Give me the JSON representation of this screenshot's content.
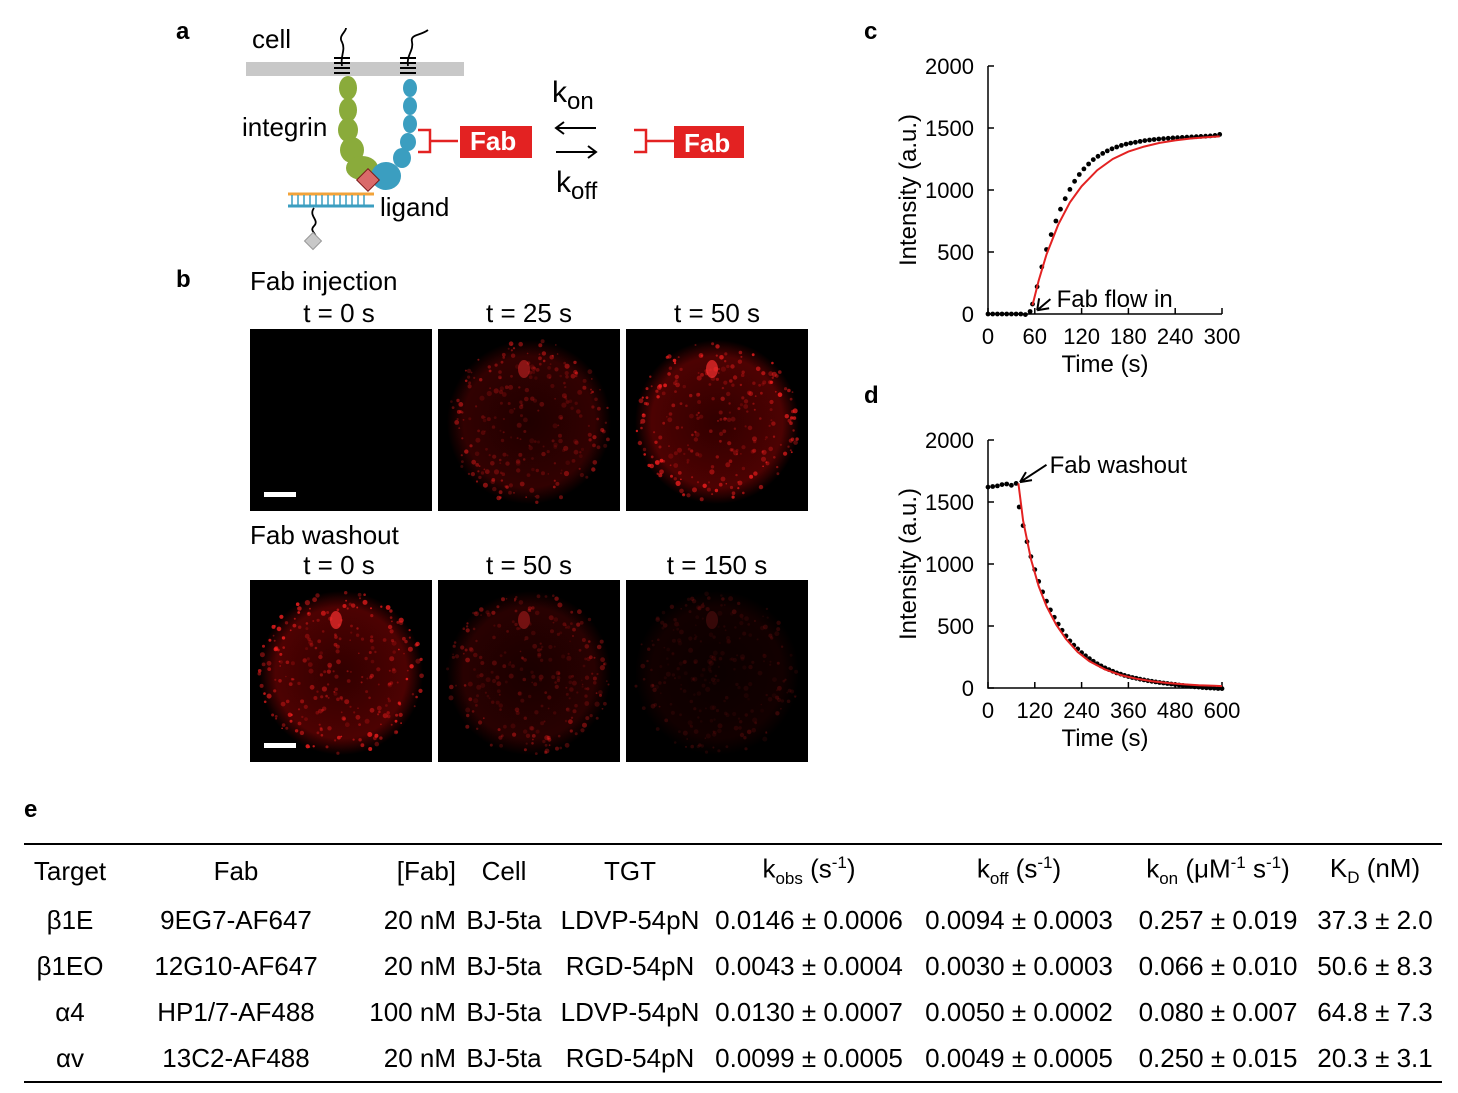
{
  "panels": {
    "a": "a",
    "b": "b",
    "c": "c",
    "d": "d",
    "e": "e"
  },
  "schematic": {
    "cell": "cell",
    "integrin": "integrin",
    "ligand": "ligand",
    "fab_bound": "Fab",
    "fab_free": "Fab",
    "k": "k",
    "on": "on",
    "off": "off",
    "colors": {
      "alpha_subunit": "#8aab3b",
      "beta_subunit": "#3b9ec0",
      "fab": "#e32222",
      "membrane": "#c8c8c8"
    }
  },
  "micrographs": {
    "injection_title": "Fab injection",
    "washout_title": "Fab washout",
    "injection_times": [
      "t = 0 s",
      "t = 25 s",
      "t = 50 s"
    ],
    "washout_times": [
      "t = 0 s",
      "t = 50 s",
      "t = 150 s"
    ],
    "injection_brightness": [
      0,
      0.55,
      0.85
    ],
    "washout_brightness": [
      0.85,
      0.45,
      0.2
    ]
  },
  "chart_data": [
    {
      "type": "scatter",
      "panel": "c",
      "xlabel": "Time (s)",
      "ylabel": "Intensity (a.u.)",
      "xlim": [
        0,
        300
      ],
      "ylim": [
        0,
        2000
      ],
      "xticks": [
        "0",
        "60",
        "120",
        "180",
        "240",
        "300"
      ],
      "yticks": [
        "0",
        "500",
        "1000",
        "1500",
        "2000"
      ],
      "annotation": "Fab flow in",
      "series": [
        {
          "points": [
            [
              0,
              0
            ],
            [
              6,
              0
            ],
            [
              12,
              0
            ],
            [
              18,
              0
            ],
            [
              24,
              0
            ],
            [
              30,
              0
            ],
            [
              36,
              0
            ],
            [
              42,
              0
            ],
            [
              48,
              -5
            ],
            [
              54,
              20
            ],
            [
              57,
              80
            ],
            [
              63,
              220
            ],
            [
              69,
              380
            ],
            [
              75,
              520
            ],
            [
              81,
              640
            ],
            [
              87,
              750
            ],
            [
              93,
              845
            ],
            [
              99,
              930
            ],
            [
              105,
              1005
            ],
            [
              111,
              1070
            ],
            [
              117,
              1125
            ],
            [
              123,
              1170
            ],
            [
              129,
              1210
            ],
            [
              135,
              1245
            ],
            [
              141,
              1272
            ],
            [
              147,
              1295
            ],
            [
              153,
              1315
            ],
            [
              159,
              1332
            ],
            [
              165,
              1347
            ],
            [
              171,
              1360
            ],
            [
              177,
              1370
            ],
            [
              183,
              1378
            ],
            [
              189,
              1385
            ],
            [
              195,
              1392
            ],
            [
              201,
              1398
            ],
            [
              207,
              1403
            ],
            [
              213,
              1407
            ],
            [
              219,
              1411
            ],
            [
              225,
              1414
            ],
            [
              231,
              1417
            ],
            [
              237,
              1420
            ],
            [
              243,
              1422
            ],
            [
              249,
              1424
            ],
            [
              255,
              1426
            ],
            [
              261,
              1428
            ],
            [
              267,
              1430
            ],
            [
              273,
              1432
            ],
            [
              279,
              1434
            ],
            [
              285,
              1436
            ],
            [
              291,
              1440
            ],
            [
              297,
              1448
            ]
          ]
        },
        {
          "fit": [
            [
              57,
              70
            ],
            [
              65,
              270
            ],
            [
              75,
              480
            ],
            [
              90,
              720
            ],
            [
              105,
              900
            ],
            [
              120,
              1030
            ],
            [
              140,
              1160
            ],
            [
              160,
              1250
            ],
            [
              180,
              1310
            ],
            [
              200,
              1350
            ],
            [
              220,
              1380
            ],
            [
              240,
              1400
            ],
            [
              260,
              1415
            ],
            [
              280,
              1425
            ],
            [
              297,
              1432
            ]
          ]
        }
      ]
    },
    {
      "type": "scatter",
      "panel": "d",
      "xlabel": "Time (s)",
      "ylabel": "Intensity (a.u.)",
      "xlim": [
        0,
        600
      ],
      "ylim": [
        0,
        2000
      ],
      "xticks": [
        "0",
        "120",
        "240",
        "360",
        "480",
        "600"
      ],
      "yticks": [
        "0",
        "500",
        "1000",
        "1500",
        "2000"
      ],
      "annotation": "Fab washout",
      "series": [
        {
          "points": [
            [
              0,
              1620
            ],
            [
              12,
              1625
            ],
            [
              24,
              1630
            ],
            [
              36,
              1640
            ],
            [
              48,
              1645
            ],
            [
              60,
              1635
            ],
            [
              72,
              1650
            ],
            [
              80,
              1460
            ],
            [
              90,
              1310
            ],
            [
              100,
              1180
            ],
            [
              110,
              1060
            ],
            [
              120,
              955
            ],
            [
              130,
              860
            ],
            [
              140,
              775
            ],
            [
              150,
              700
            ],
            [
              160,
              630
            ],
            [
              170,
              570
            ],
            [
              180,
              515
            ],
            [
              190,
              465
            ],
            [
              200,
              420
            ],
            [
              210,
              380
            ],
            [
              220,
              345
            ],
            [
              230,
              315
            ],
            [
              240,
              285
            ],
            [
              250,
              260
            ],
            [
              260,
              237
            ],
            [
              270,
              215
            ],
            [
              280,
              195
            ],
            [
              290,
              178
            ],
            [
              300,
              162
            ],
            [
              310,
              148
            ],
            [
              320,
              135
            ],
            [
              330,
              122
            ],
            [
              340,
              112
            ],
            [
              350,
              102
            ],
            [
              360,
              93
            ],
            [
              370,
              85
            ],
            [
              380,
              78
            ],
            [
              390,
              71
            ],
            [
              400,
              65
            ],
            [
              410,
              59
            ],
            [
              420,
              54
            ],
            [
              430,
              49
            ],
            [
              440,
              44
            ],
            [
              450,
              40
            ],
            [
              460,
              36
            ],
            [
              470,
              32
            ],
            [
              480,
              28
            ],
            [
              490,
              24
            ],
            [
              500,
              20
            ],
            [
              510,
              16
            ],
            [
              520,
              13
            ],
            [
              530,
              10
            ],
            [
              540,
              7
            ],
            [
              550,
              4
            ],
            [
              560,
              2
            ],
            [
              570,
              0
            ],
            [
              580,
              -2
            ],
            [
              590,
              -4
            ],
            [
              600,
              -5
            ]
          ]
        },
        {
          "fit": [
            [
              78,
              1650
            ],
            [
              90,
              1350
            ],
            [
              110,
              1040
            ],
            [
              130,
              820
            ],
            [
              150,
              660
            ],
            [
              175,
              510
            ],
            [
              200,
              395
            ],
            [
              230,
              290
            ],
            [
              260,
              215
            ],
            [
              300,
              150
            ],
            [
              340,
              105
            ],
            [
              380,
              75
            ],
            [
              420,
              55
            ],
            [
              460,
              40
            ],
            [
              500,
              30
            ],
            [
              540,
              22
            ],
            [
              580,
              18
            ],
            [
              600,
              15
            ]
          ]
        }
      ]
    }
  ],
  "table": {
    "headers": {
      "target": "Target",
      "fab": "Fab",
      "conc": "[Fab]",
      "cell": "Cell",
      "tgt": "TGT",
      "kobs_k": "k",
      "kobs_sub": "obs",
      "kobs_unit1": " (s",
      "kobs_sup": "-1",
      "kobs_unit2": ")",
      "koff_k": "k",
      "koff_sub": "off",
      "koff_unit1": " (s",
      "koff_sup": "-1",
      "koff_unit2": ")",
      "kon_k": "k",
      "kon_sub": "on",
      "kon_unit1": " (μM",
      "kon_sup1": "-1",
      "kon_unit2": " s",
      "kon_sup2": "-1",
      "kon_unit3": ")",
      "kd_k": "K",
      "kd_sub": "D",
      "kd_unit": " (nM)"
    },
    "rows": [
      {
        "target": "β1E",
        "fab": "9EG7-AF647",
        "conc": "20 nM",
        "cell": "BJ-5ta",
        "tgt": "LDVP-54pN",
        "kobs": "0.0146 ± 0.0006",
        "koff": "0.0094 ± 0.0003",
        "kon": "0.257 ± 0.019",
        "kd": "37.3 ± 2.0"
      },
      {
        "target": "β1EO",
        "fab": "12G10-AF647",
        "conc": "20 nM",
        "cell": "BJ-5ta",
        "tgt": "RGD-54pN",
        "kobs": "0.0043 ± 0.0004",
        "koff": "0.0030 ± 0.0003",
        "kon": "0.066 ± 0.010",
        "kd": "50.6 ± 8.3"
      },
      {
        "target": "α4",
        "fab": "HP1/7-AF488",
        "conc": "100 nM",
        "cell": "BJ-5ta",
        "tgt": "LDVP-54pN",
        "kobs": "0.0130 ± 0.0007",
        "koff": "0.0050 ± 0.0002",
        "kon": "0.080 ± 0.007",
        "kd": "64.8 ± 7.3"
      },
      {
        "target": "αv",
        "fab": "13C2-AF488",
        "conc": "20 nM",
        "cell": "BJ-5ta",
        "tgt": "RGD-54pN",
        "kobs": "0.0099 ± 0.0005",
        "koff": "0.0049 ± 0.0005",
        "kon": "0.250 ± 0.015",
        "kd": "20.3 ± 3.1"
      }
    ]
  }
}
